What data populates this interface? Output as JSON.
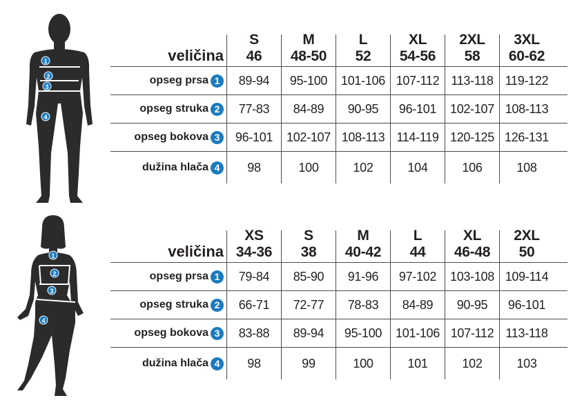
{
  "colors": {
    "badge": "#1b7bc0",
    "silhouette": "#2b2b2b"
  },
  "tables": [
    {
      "header_label": "veličina",
      "sizes": [
        {
          "size": "S",
          "number": "46"
        },
        {
          "size": "M",
          "number": "48-50"
        },
        {
          "size": "L",
          "number": "52"
        },
        {
          "size": "XL",
          "number": "54-56"
        },
        {
          "size": "2XL",
          "number": "58"
        },
        {
          "size": "3XL",
          "number": "60-62"
        }
      ],
      "rows": [
        {
          "label": "opseg prsa",
          "badge": "1",
          "values": [
            "89-94",
            "95-100",
            "101-106",
            "107-112",
            "113-118",
            "119-122"
          ]
        },
        {
          "label": "opseg struka",
          "badge": "2",
          "values": [
            "77-83",
            "84-89",
            "90-95",
            "96-101",
            "102-107",
            "108-113"
          ]
        },
        {
          "label": "opseg bokova",
          "badge": "3",
          "values": [
            "96-101",
            "102-107",
            "108-113",
            "114-119",
            "120-125",
            "126-131"
          ]
        },
        {
          "label": "dužina hlača",
          "badge": "4",
          "values": [
            "98",
            "100",
            "102",
            "104",
            "106",
            "108"
          ]
        }
      ]
    },
    {
      "header_label": "veličina",
      "sizes": [
        {
          "size": "XS",
          "number": "34-36"
        },
        {
          "size": "S",
          "number": "38"
        },
        {
          "size": "M",
          "number": "40-42"
        },
        {
          "size": "L",
          "number": "44"
        },
        {
          "size": "XL",
          "number": "46-48"
        },
        {
          "size": "2XL",
          "number": "50"
        }
      ],
      "rows": [
        {
          "label": "opseg prsa",
          "badge": "1",
          "values": [
            "79-84",
            "85-90",
            "91-96",
            "97-102",
            "103-108",
            "109-114"
          ]
        },
        {
          "label": "opseg struka",
          "badge": "2",
          "values": [
            "66-71",
            "72-77",
            "78-83",
            "84-89",
            "90-95",
            "96-101"
          ]
        },
        {
          "label": "opseg bokova",
          "badge": "3",
          "values": [
            "83-88",
            "89-94",
            "95-100",
            "101-106",
            "107-112",
            "113-118"
          ]
        },
        {
          "label": "dužina hlača",
          "badge": "4",
          "values": [
            "98",
            "99",
            "100",
            "101",
            "102",
            "103"
          ]
        }
      ]
    }
  ],
  "figures": {
    "male_markers": [
      "1",
      "2",
      "3",
      "4"
    ],
    "female_markers": [
      "1",
      "2",
      "3",
      "4"
    ]
  }
}
